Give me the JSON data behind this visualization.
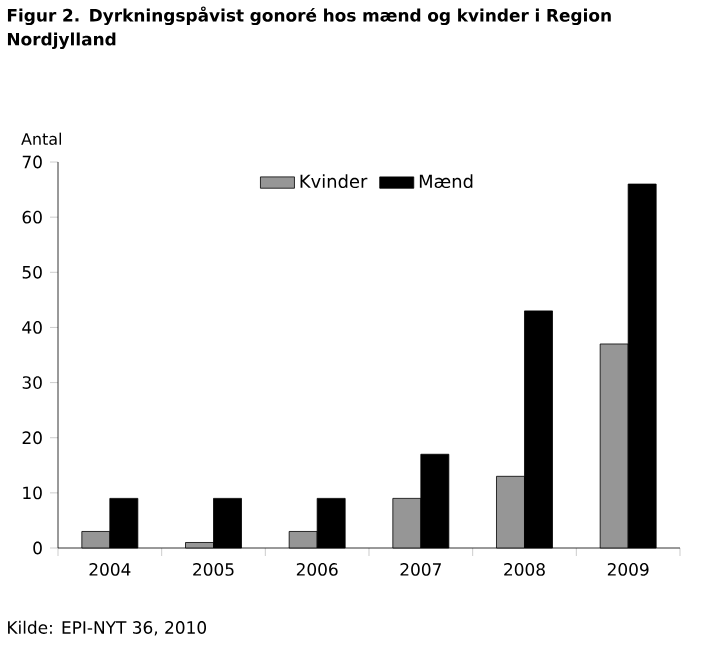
{
  "chart_data": {
    "type": "bar",
    "title": "Figur 2. Dyrkningspåvist gonoré hos mænd og kvinder i Region Nordjylland",
    "ylabel": "Antal",
    "categories": [
      "2004",
      "2005",
      "2006",
      "2007",
      "2008",
      "2009"
    ],
    "series": [
      {
        "name": "Kvinder",
        "color": "#969696",
        "values": [
          3,
          1,
          3,
          9,
          13,
          37
        ]
      },
      {
        "name": "Mænd",
        "color": "#000000",
        "values": [
          9,
          9,
          9,
          17,
          43,
          66
        ]
      }
    ],
    "ylim": [
      0,
      70
    ],
    "yticks": [
      0,
      10,
      20,
      30,
      40,
      50,
      60,
      70
    ],
    "legend": "top",
    "annotations": [
      "Kilde: EPI-NYT 36, 2010"
    ]
  }
}
